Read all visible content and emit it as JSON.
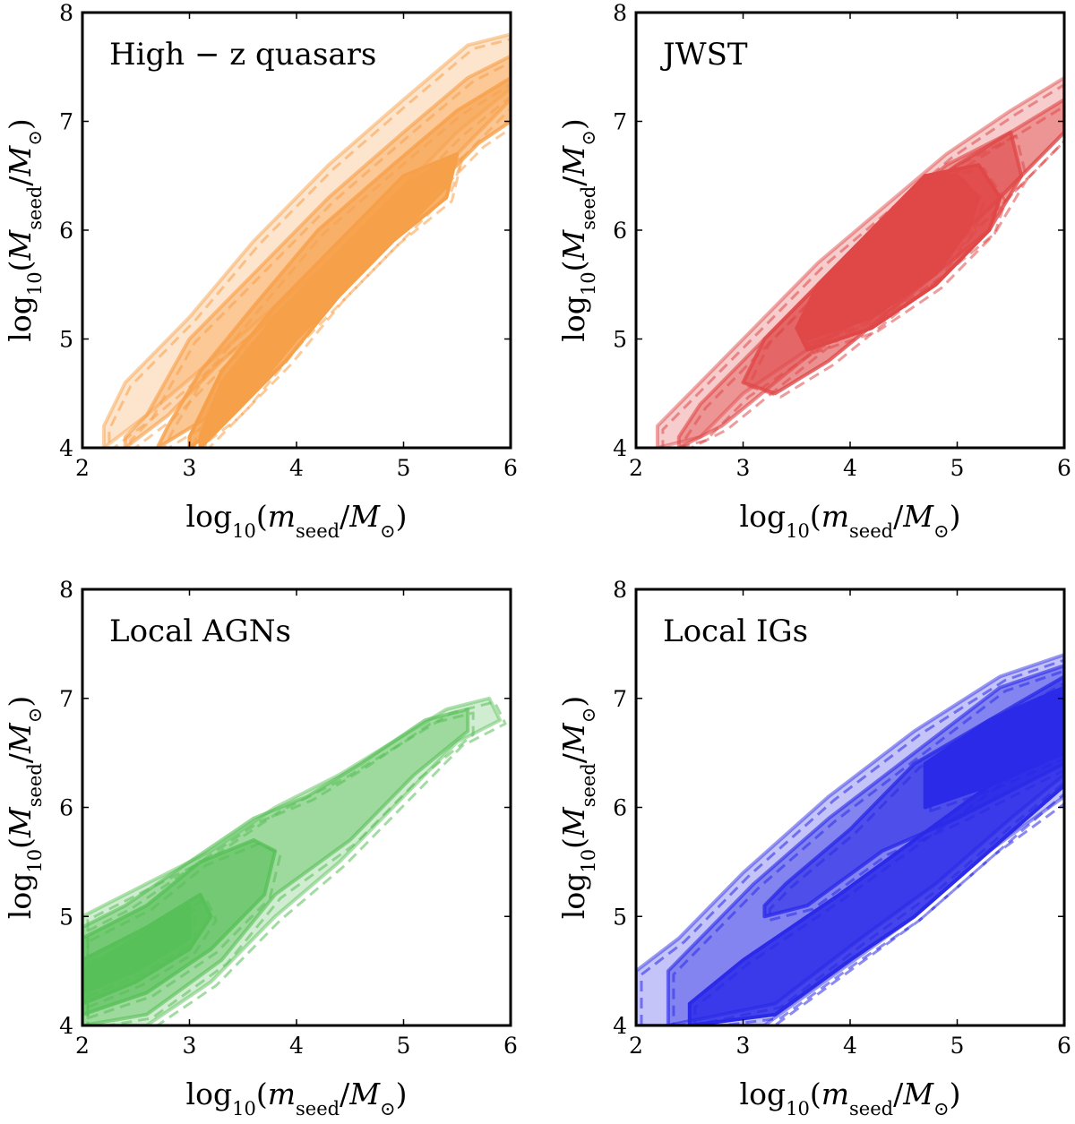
{
  "x_label": {
    "pre": "log",
    "sub10": "10",
    "open": "(",
    "var": "m",
    "sub": "seed",
    "mid": "/",
    "sun": "M",
    "odot": "⊙",
    "close": ")"
  },
  "y_label": {
    "pre": "log",
    "sub10": "10",
    "open": "(",
    "var": "M",
    "sub": "seed",
    "mid": "/",
    "sun": "M",
    "odot": "⊙",
    "close": ")"
  },
  "chart_data": [
    {
      "type": "contour",
      "title": "High − z quasars",
      "color": "#f7a04a",
      "xlim": [
        2,
        6
      ],
      "ylim": [
        4,
        8
      ],
      "xticks": [
        "2",
        "3",
        "4",
        "5",
        "6"
      ],
      "yticks": [
        "4",
        "5",
        "6",
        "7",
        "8"
      ],
      "levels": [
        {
          "lower": [
            [
              2.2,
              4.0
            ],
            [
              2.6,
              4.3
            ],
            [
              3.2,
              4.8
            ],
            [
              3.8,
              5.3
            ],
            [
              4.3,
              5.7
            ],
            [
              4.9,
              6.3
            ],
            [
              5.5,
              6.9
            ],
            [
              6.0,
              7.3
            ]
          ],
          "upper": [
            [
              6.0,
              7.8
            ],
            [
              5.6,
              7.7
            ],
            [
              5.0,
              7.2
            ],
            [
              4.3,
              6.6
            ],
            [
              3.6,
              5.9
            ],
            [
              3.0,
              5.2
            ],
            [
              2.4,
              4.6
            ],
            [
              2.2,
              4.2
            ]
          ]
        },
        {
          "lower": [
            [
              2.4,
              4.0
            ],
            [
              2.8,
              4.3
            ],
            [
              3.3,
              4.8
            ],
            [
              3.9,
              5.3
            ],
            [
              4.4,
              5.6
            ],
            [
              5.0,
              6.2
            ],
            [
              5.6,
              6.8
            ],
            [
              6.0,
              7.2
            ]
          ],
          "upper": [
            [
              6.0,
              7.6
            ],
            [
              5.6,
              7.4
            ],
            [
              5.0,
              6.9
            ],
            [
              4.3,
              6.3
            ],
            [
              3.6,
              5.6
            ],
            [
              3.0,
              5.0
            ],
            [
              2.6,
              4.3
            ],
            [
              2.4,
              4.1
            ]
          ]
        },
        {
          "lower": [
            [
              2.7,
              4.0
            ],
            [
              3.2,
              4.3
            ],
            [
              3.6,
              4.8
            ],
            [
              4.1,
              5.3
            ],
            [
              4.6,
              5.8
            ],
            [
              5.2,
              6.3
            ],
            [
              5.7,
              6.8
            ],
            [
              6.0,
              7.0
            ]
          ],
          "upper": [
            [
              6.0,
              7.4
            ],
            [
              5.5,
              7.1
            ],
            [
              4.9,
              6.6
            ],
            [
              4.2,
              6.0
            ],
            [
              3.6,
              5.3
            ],
            [
              3.1,
              4.7
            ],
            [
              2.8,
              4.2
            ],
            [
              2.7,
              4.0
            ]
          ]
        },
        {
          "lower": [
            [
              3.0,
              4.0
            ],
            [
              3.4,
              4.3
            ],
            [
              3.9,
              4.8
            ],
            [
              4.4,
              5.4
            ],
            [
              4.9,
              5.9
            ],
            [
              5.4,
              6.3
            ]
          ],
          "upper": [
            [
              5.5,
              6.7
            ],
            [
              5.0,
              6.5
            ],
            [
              4.4,
              5.9
            ],
            [
              3.8,
              5.3
            ],
            [
              3.3,
              4.7
            ],
            [
              3.0,
              4.1
            ]
          ]
        },
        {
          "lower": [
            [
              3.1,
              4.0
            ],
            [
              3.5,
              4.4
            ],
            [
              4.0,
              5.0
            ],
            [
              4.5,
              5.5
            ],
            [
              5.0,
              6.0
            ],
            [
              5.4,
              6.4
            ]
          ],
          "upper": [
            [
              5.5,
              6.7
            ],
            [
              5.0,
              6.4
            ],
            [
              4.4,
              5.8
            ],
            [
              3.8,
              5.2
            ],
            [
              3.3,
              4.6
            ],
            [
              3.1,
              4.1
            ]
          ]
        }
      ]
    },
    {
      "type": "contour",
      "title": "JWST",
      "color": "#e04848",
      "xlim": [
        2,
        6
      ],
      "ylim": [
        4,
        8
      ],
      "xticks": [
        "2",
        "3",
        "4",
        "5",
        "6"
      ],
      "yticks": [
        "4",
        "5",
        "6",
        "7",
        "8"
      ],
      "levels": [
        {
          "lower": [
            [
              2.2,
              4.0
            ],
            [
              2.6,
              4.1
            ],
            [
              3.0,
              4.5
            ],
            [
              3.6,
              4.9
            ],
            [
              4.1,
              5.2
            ],
            [
              4.7,
              5.7
            ],
            [
              5.3,
              6.2
            ],
            [
              6.0,
              6.9
            ]
          ],
          "upper": [
            [
              6.0,
              7.4
            ],
            [
              5.5,
              7.1
            ],
            [
              4.9,
              6.7
            ],
            [
              4.3,
              6.2
            ],
            [
              3.7,
              5.7
            ],
            [
              3.1,
              5.1
            ],
            [
              2.6,
              4.6
            ],
            [
              2.2,
              4.2
            ]
          ]
        },
        {
          "lower": [
            [
              2.4,
              4.0
            ],
            [
              2.8,
              4.2
            ],
            [
              3.3,
              4.6
            ],
            [
              3.8,
              5.0
            ],
            [
              4.3,
              5.3
            ],
            [
              4.9,
              5.8
            ],
            [
              5.5,
              6.4
            ],
            [
              6.0,
              6.9
            ]
          ],
          "upper": [
            [
              6.0,
              7.2
            ],
            [
              5.5,
              6.9
            ],
            [
              4.9,
              6.6
            ],
            [
              4.3,
              6.1
            ],
            [
              3.7,
              5.5
            ],
            [
              3.1,
              4.9
            ],
            [
              2.6,
              4.4
            ],
            [
              2.4,
              4.1
            ]
          ]
        },
        {
          "lower": [
            [
              3.3,
              4.5
            ],
            [
              3.8,
              4.8
            ],
            [
              4.3,
              5.2
            ],
            [
              4.8,
              5.6
            ],
            [
              5.3,
              6.0
            ],
            [
              5.6,
              6.5
            ]
          ],
          "upper": [
            [
              5.5,
              6.9
            ],
            [
              5.0,
              6.6
            ],
            [
              4.3,
              6.1
            ],
            [
              3.7,
              5.5
            ],
            [
              3.2,
              5.0
            ],
            [
              3.0,
              4.6
            ]
          ]
        },
        {
          "lower": [
            [
              3.6,
              4.9
            ],
            [
              4.2,
              5.1
            ],
            [
              4.8,
              5.5
            ],
            [
              5.3,
              6.0
            ],
            [
              5.4,
              6.3
            ]
          ],
          "upper": [
            [
              5.2,
              6.6
            ],
            [
              4.7,
              6.5
            ],
            [
              4.2,
              6.0
            ],
            [
              3.7,
              5.5
            ],
            [
              3.5,
              5.1
            ]
          ]
        },
        {
          "lower": [
            [
              3.6,
              5.0
            ],
            [
              4.2,
              5.2
            ],
            [
              4.8,
              5.6
            ],
            [
              5.1,
              6.0
            ],
            [
              5.2,
              6.3
            ]
          ],
          "upper": [
            [
              5.0,
              6.5
            ],
            [
              4.7,
              6.5
            ],
            [
              4.2,
              6.0
            ],
            [
              3.7,
              5.5
            ],
            [
              3.5,
              5.1
            ]
          ]
        }
      ]
    },
    {
      "type": "contour",
      "title": "Local AGNs",
      "color": "#58c058",
      "xlim": [
        2,
        6
      ],
      "ylim": [
        4,
        8
      ],
      "xticks": [
        "2",
        "3",
        "4",
        "5",
        "6"
      ],
      "yticks": [
        "4",
        "5",
        "6",
        "7",
        "8"
      ],
      "levels": [
        {
          "lower": [
            [
              2.0,
              4.0
            ],
            [
              2.6,
              4.0
            ],
            [
              3.2,
              4.4
            ],
            [
              3.8,
              5.0
            ],
            [
              4.4,
              5.5
            ],
            [
              5.0,
              6.1
            ],
            [
              5.5,
              6.6
            ],
            [
              5.9,
              6.8
            ]
          ],
          "upper": [
            [
              5.8,
              7.0
            ],
            [
              5.4,
              6.9
            ],
            [
              4.9,
              6.6
            ],
            [
              4.4,
              6.3
            ],
            [
              3.8,
              6.0
            ],
            [
              3.2,
              5.6
            ],
            [
              2.6,
              5.3
            ],
            [
              2.0,
              5.0
            ]
          ]
        },
        {
          "lower": [
            [
              2.0,
              4.0
            ],
            [
              2.6,
              4.1
            ],
            [
              3.3,
              4.6
            ],
            [
              3.8,
              5.2
            ],
            [
              4.5,
              5.7
            ],
            [
              5.1,
              6.3
            ],
            [
              5.6,
              6.7
            ]
          ],
          "upper": [
            [
              5.6,
              6.9
            ],
            [
              5.2,
              6.8
            ],
            [
              4.6,
              6.4
            ],
            [
              4.1,
              6.1
            ],
            [
              3.6,
              5.9
            ],
            [
              3.0,
              5.5
            ],
            [
              2.4,
              5.1
            ],
            [
              2.0,
              4.9
            ]
          ]
        },
        {
          "lower": [
            [
              2.0,
              4.1
            ],
            [
              2.6,
              4.3
            ],
            [
              3.2,
              4.7
            ],
            [
              3.7,
              5.2
            ],
            [
              3.8,
              5.6
            ]
          ],
          "upper": [
            [
              3.6,
              5.7
            ],
            [
              3.1,
              5.5
            ],
            [
              2.6,
              5.1
            ],
            [
              2.0,
              4.8
            ]
          ]
        },
        {
          "lower": [
            [
              2.0,
              4.2
            ],
            [
              2.5,
              4.4
            ],
            [
              3.0,
              4.7
            ],
            [
              3.2,
              5.0
            ]
          ],
          "upper": [
            [
              3.1,
              5.2
            ],
            [
              2.6,
              4.9
            ],
            [
              2.0,
              4.6
            ]
          ]
        },
        {
          "lower": [
            [
              2.0,
              4.3
            ],
            [
              2.5,
              4.5
            ],
            [
              3.0,
              4.8
            ]
          ],
          "upper": [
            [
              3.0,
              5.1
            ],
            [
              2.5,
              4.8
            ],
            [
              2.0,
              4.5
            ]
          ]
        }
      ]
    },
    {
      "type": "contour",
      "title": "Local IGs",
      "color": "#2a2ae8",
      "xlim": [
        2,
        6
      ],
      "ylim": [
        4,
        8
      ],
      "xticks": [
        "2",
        "3",
        "4",
        "5",
        "6"
      ],
      "yticks": [
        "4",
        "5",
        "6",
        "7",
        "8"
      ],
      "levels": [
        {
          "lower": [
            [
              2.0,
              4.0
            ],
            [
              3.2,
              4.0
            ],
            [
              3.9,
              4.5
            ],
            [
              4.6,
              5.0
            ],
            [
              5.3,
              5.6
            ],
            [
              6.0,
              6.1
            ]
          ],
          "upper": [
            [
              6.0,
              7.4
            ],
            [
              5.4,
              7.2
            ],
            [
              4.6,
              6.7
            ],
            [
              3.8,
              6.1
            ],
            [
              3.0,
              5.4
            ],
            [
              2.4,
              4.8
            ],
            [
              2.0,
              4.5
            ]
          ]
        },
        {
          "lower": [
            [
              2.3,
              4.0
            ],
            [
              3.3,
              4.2
            ],
            [
              4.1,
              4.8
            ],
            [
              4.8,
              5.3
            ],
            [
              5.5,
              5.9
            ],
            [
              6.0,
              6.3
            ]
          ],
          "upper": [
            [
              6.0,
              7.3
            ],
            [
              5.4,
              7.1
            ],
            [
              4.6,
              6.5
            ],
            [
              3.8,
              5.9
            ],
            [
              3.1,
              5.3
            ],
            [
              2.5,
              4.7
            ],
            [
              2.3,
              4.5
            ]
          ]
        },
        {
          "lower": [
            [
              3.2,
              5.0
            ],
            [
              3.6,
              5.1
            ],
            [
              4.3,
              5.6
            ],
            [
              5.0,
              5.9
            ],
            [
              5.6,
              6.2
            ],
            [
              6.0,
              6.4
            ]
          ],
          "upper": [
            [
              6.0,
              7.2
            ],
            [
              5.3,
              6.8
            ],
            [
              4.6,
              6.4
            ],
            [
              4.0,
              5.8
            ],
            [
              3.4,
              5.3
            ],
            [
              3.2,
              5.1
            ]
          ]
        },
        {
          "lower": [
            [
              2.5,
              4.0
            ],
            [
              3.3,
              4.1
            ],
            [
              4.0,
              4.6
            ],
            [
              4.6,
              5.0
            ],
            [
              5.3,
              5.6
            ],
            [
              6.0,
              6.2
            ]
          ],
          "upper": [
            [
              6.0,
              6.7
            ],
            [
              5.3,
              6.2
            ],
            [
              4.6,
              5.7
            ],
            [
              3.9,
              5.2
            ],
            [
              3.0,
              4.6
            ],
            [
              2.5,
              4.2
            ]
          ]
        },
        {
          "lower": [
            [
              4.7,
              6.0
            ],
            [
              5.3,
              6.2
            ],
            [
              6.0,
              6.5
            ]
          ],
          "upper": [
            [
              6.0,
              7.1
            ],
            [
              5.3,
              6.8
            ],
            [
              4.7,
              6.4
            ]
          ]
        }
      ]
    }
  ]
}
